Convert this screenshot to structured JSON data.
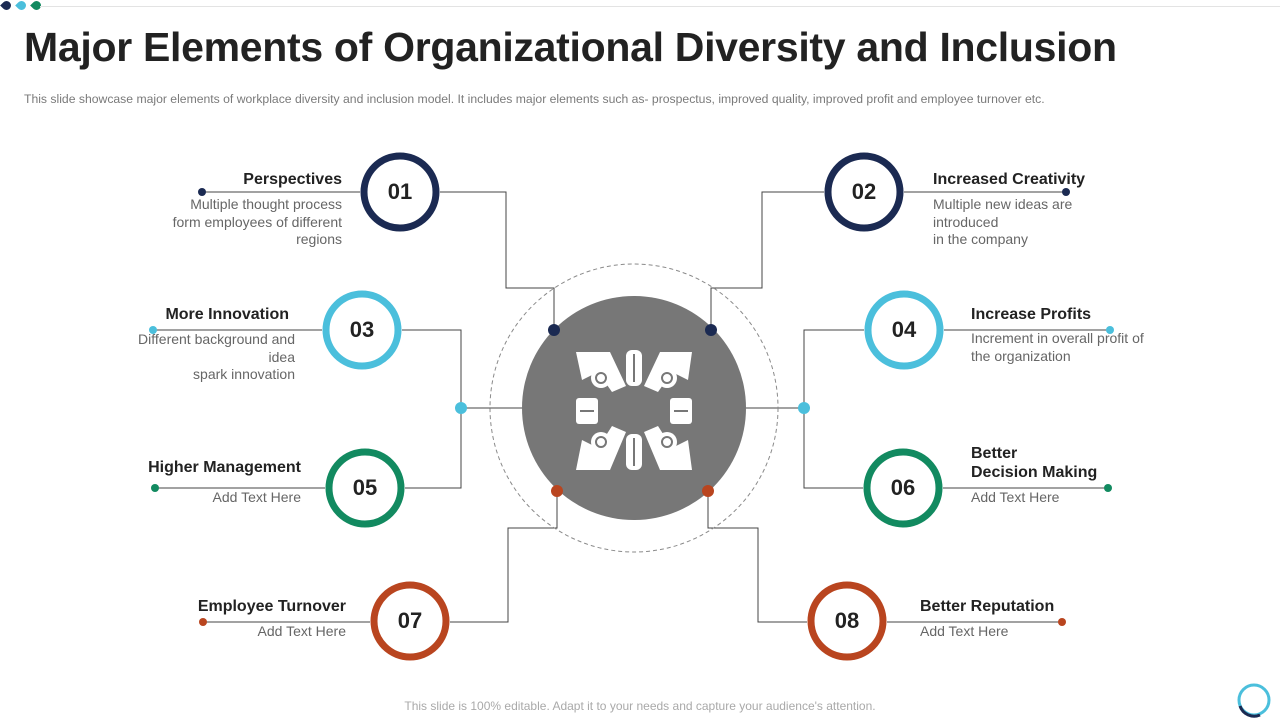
{
  "title": "Major Elements of Organizational Diversity and Inclusion",
  "subtitle": "This slide showcase major elements of workplace diversity and inclusion model. It includes major elements such as- prospectus, improved quality, improved profit and employee turnover etc.",
  "colors": {
    "navy": "#1b2a52",
    "cyan": "#4bbfdc",
    "green": "#128a60",
    "rust": "#b9451f",
    "center_fill": "#777777",
    "line": "#444444",
    "top_dots": [
      "#1b2a52",
      "#4bbfdc",
      "#128a60"
    ]
  },
  "center_icon": "diverse-hands-teamwork-icon",
  "elements": [
    {
      "number": "01",
      "title": "Perspectives",
      "description": "Multiple thought process\nform employees of different\nregions",
      "color": "#1b2a52"
    },
    {
      "number": "02",
      "title": "Increased Creativity",
      "description": "Multiple new ideas are\nintroduced\nin the company",
      "color": "#1b2a52"
    },
    {
      "number": "03",
      "title": "More Innovation",
      "description": "Different background and\nidea\nspark innovation",
      "color": "#4bbfdc"
    },
    {
      "number": "04",
      "title": "Increase Profits",
      "description": "Increment in overall profit of\nthe organization",
      "color": "#4bbfdc"
    },
    {
      "number": "05",
      "title": "Higher Management",
      "description": "Add Text Here",
      "color": "#128a60"
    },
    {
      "number": "06",
      "title": "Better\nDecision Making",
      "description": "Add Text Here",
      "color": "#128a60"
    },
    {
      "number": "07",
      "title": "Employee Turnover",
      "description": "Add Text Here",
      "color": "#b9451f"
    },
    {
      "number": "08",
      "title": "Better Reputation",
      "description": "Add Text Here",
      "color": "#b9451f"
    }
  ],
  "footer": "This slide is 100% editable. Adapt it to your needs and capture your audience's attention."
}
